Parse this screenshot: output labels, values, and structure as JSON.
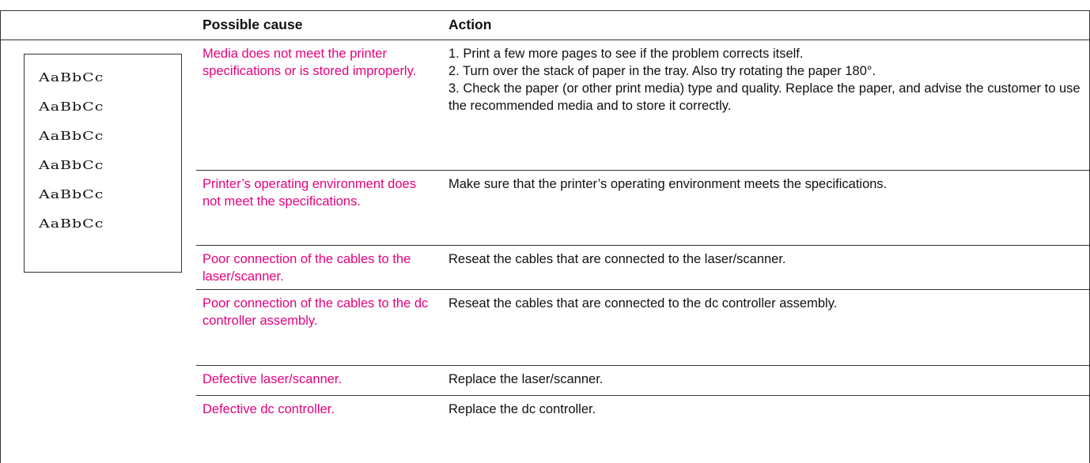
{
  "header": {
    "cause": "Possible cause",
    "action": "Action"
  },
  "sample_lines": [
    "AaBbCc",
    "AaBbCc",
    "AaBbCc",
    "AaBbCc",
    "AaBbCc",
    "AaBbCc"
  ],
  "rows": [
    {
      "cause": "Media does not meet the printer specifications or is stored improperly.",
      "action": [
        "1. Print a few more pages to see if the problem corrects itself.",
        "2. Turn over the stack of paper in the tray. Also try rotating the paper 180°.",
        "3. Check the paper (or other print media) type and quality. Replace the paper, and advise the customer to use the recommended media and to store it correctly."
      ]
    },
    {
      "cause": "Printer’s operating environment does not meet the specifications.",
      "action": [
        "Make sure that the printer’s operating environment meets the specifications."
      ]
    },
    {
      "cause": "Poor connection of the cables to the laser/scanner.",
      "action": [
        "Reseat the cables that are connected to the laser/scanner."
      ]
    },
    {
      "cause": "Poor connection of the cables to the dc controller assembly.",
      "action": [
        "Reseat the cables that are connected to the dc controller assembly."
      ]
    },
    {
      "cause": "Defective laser/scanner.",
      "action": [
        "Replace the laser/scanner."
      ]
    },
    {
      "cause": "Defective dc controller.",
      "action": [
        "Replace the dc controller."
      ]
    }
  ]
}
